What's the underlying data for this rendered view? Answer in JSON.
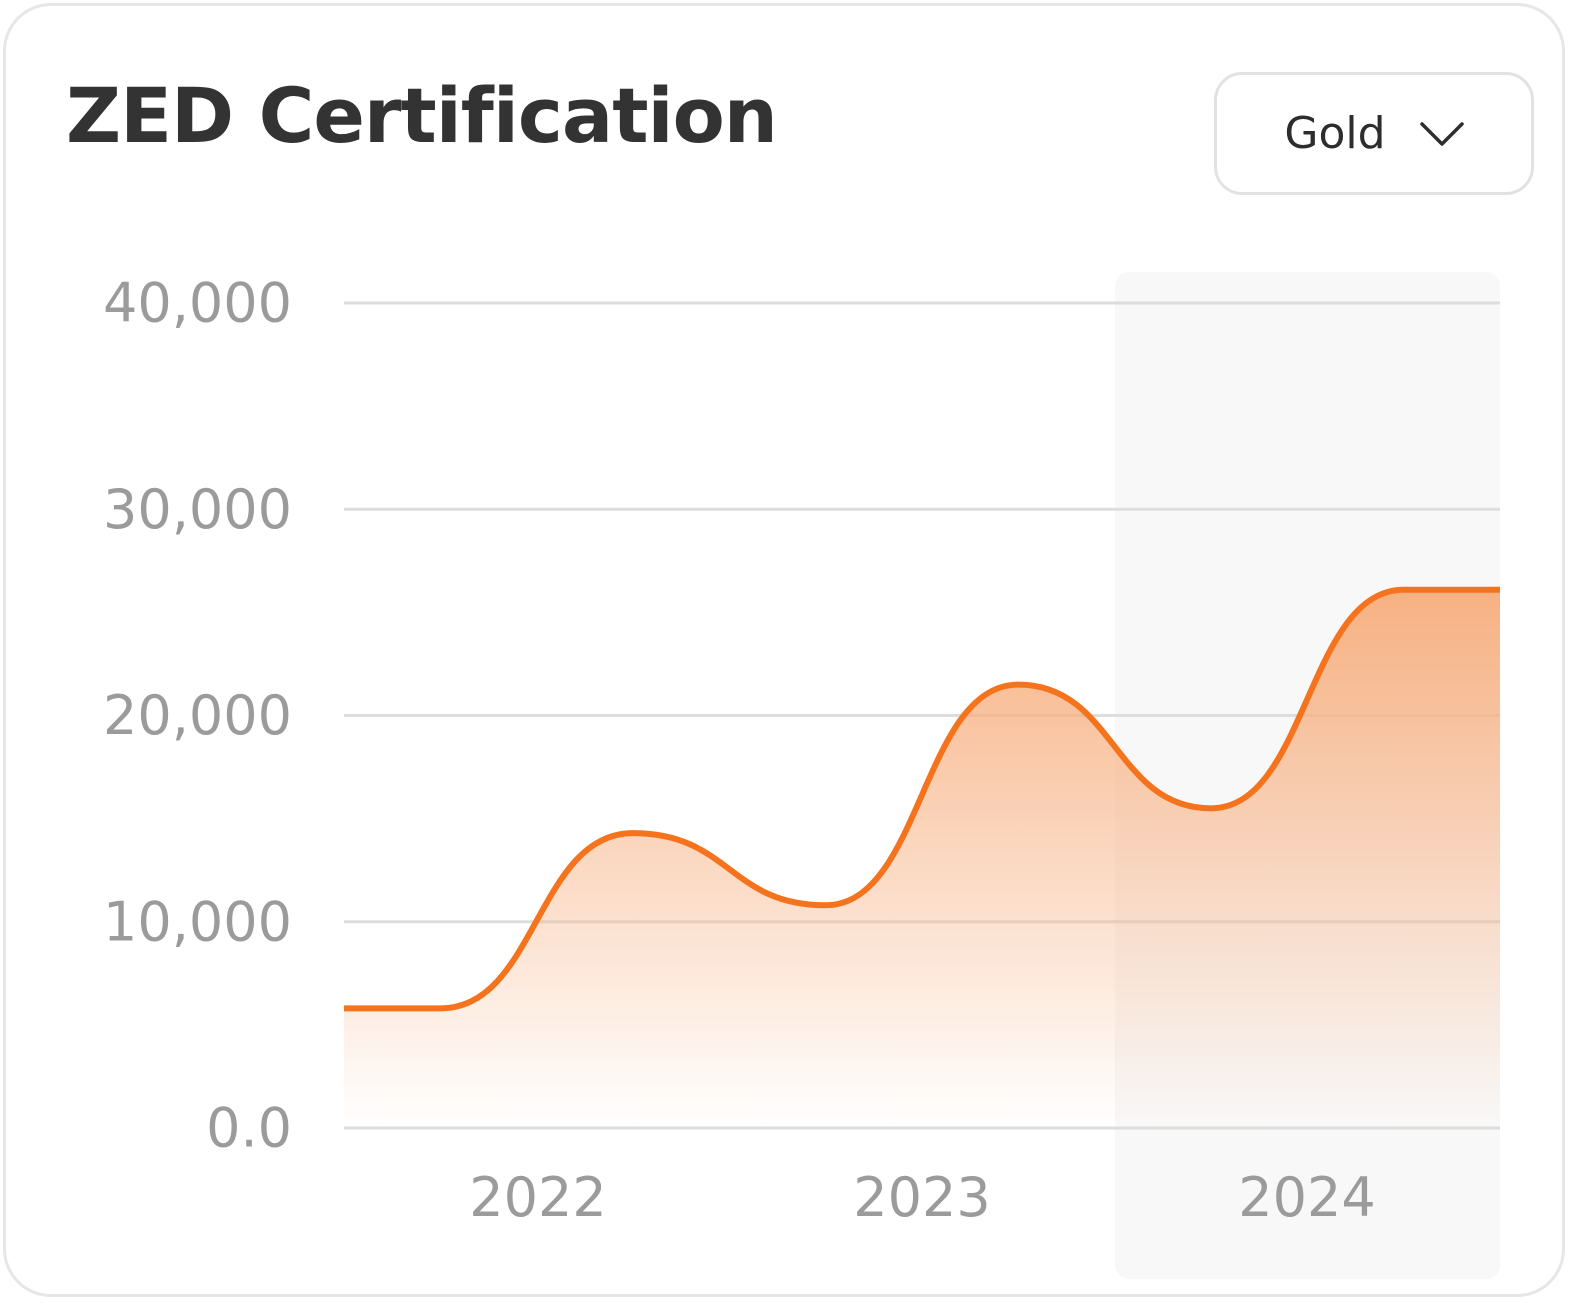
{
  "card": {
    "title": "ZED Certification"
  },
  "filter": {
    "selected": "Gold",
    "icon": "chevron-down-icon"
  },
  "colors": {
    "line": "#f5731c",
    "fill_top": "#f7ad7c",
    "grid": "#dddddd",
    "axis_text": "#9b9b9b",
    "highlight_band": "#f8f8f8",
    "title": "#333333"
  },
  "chart_data": {
    "type": "area",
    "smooth": true,
    "title": "ZED Certification",
    "xlabel": "",
    "ylabel": "",
    "ylim": [
      0,
      40000
    ],
    "yticks": [
      {
        "value": 40000,
        "label": "40,000"
      },
      {
        "value": 30000,
        "label": "30,000"
      },
      {
        "value": 20000,
        "label": "20,000"
      },
      {
        "value": 10000,
        "label": "10,000"
      },
      {
        "value": 0,
        "label": "0.0"
      }
    ],
    "xticks": [
      "2022",
      "2023",
      "2024"
    ],
    "highlighted_category": "2024",
    "grid": true,
    "legend": "none",
    "x": [
      2021.5,
      2021.75,
      2022.25,
      2022.75,
      2023.25,
      2023.75,
      2024.25,
      2024.5
    ],
    "values": [
      5800,
      5800,
      14300,
      10800,
      21500,
      15500,
      26100,
      26100
    ]
  }
}
